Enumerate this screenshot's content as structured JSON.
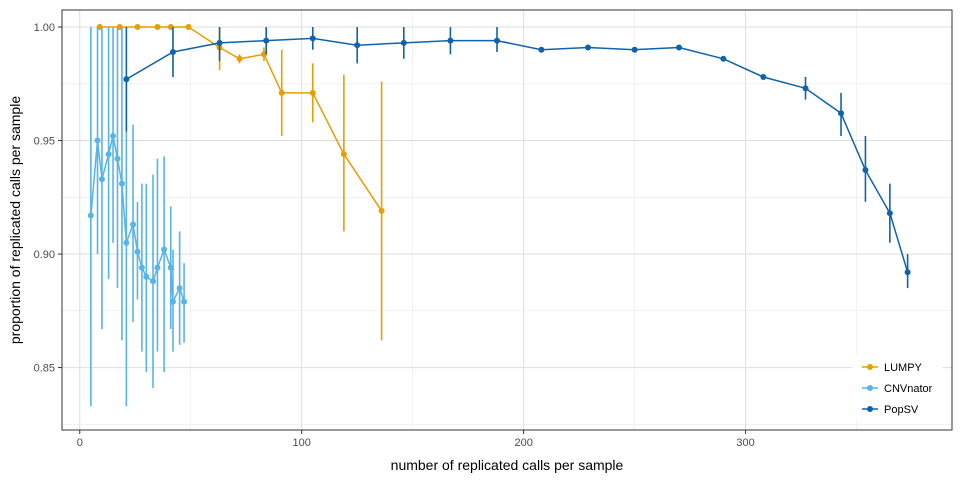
{
  "chart_data": {
    "type": "line",
    "xlabel": "number of replicated calls per sample",
    "ylabel": "proportion of replicated calls per sample",
    "xlim": [
      -8,
      393
    ],
    "ylim": [
      0.8225,
      1.0075
    ],
    "xticks": [
      0,
      100,
      200,
      300
    ],
    "yticks": [
      0.85,
      0.9,
      0.95,
      1.0
    ],
    "ytick_labels": [
      "0.85",
      "0.90",
      "0.95",
      "1.00"
    ],
    "grid": true,
    "legend_position": "bottom-right",
    "series": [
      {
        "name": "LUMPY",
        "color": "#E69F00",
        "points": [
          {
            "x": 9,
            "y": 1.0,
            "lo": 1.0,
            "hi": 1.0
          },
          {
            "x": 18,
            "y": 1.0,
            "lo": 1.0,
            "hi": 1.0
          },
          {
            "x": 26,
            "y": 1.0,
            "lo": 1.0,
            "hi": 1.0
          },
          {
            "x": 35,
            "y": 1.0,
            "lo": 1.0,
            "hi": 1.0
          },
          {
            "x": 41,
            "y": 1.0,
            "lo": 1.0,
            "hi": 1.0
          },
          {
            "x": 49,
            "y": 1.0,
            "lo": 1.0,
            "hi": 1.0
          },
          {
            "x": 63,
            "y": 0.991,
            "lo": 0.981,
            "hi": 1.0
          },
          {
            "x": 72,
            "y": 0.986,
            "lo": 0.984,
            "hi": 0.988
          },
          {
            "x": 83,
            "y": 0.988,
            "lo": 0.985,
            "hi": 0.991
          },
          {
            "x": 91,
            "y": 0.971,
            "lo": 0.952,
            "hi": 0.99
          },
          {
            "x": 105,
            "y": 0.971,
            "lo": 0.958,
            "hi": 0.984
          },
          {
            "x": 119,
            "y": 0.944,
            "lo": 0.91,
            "hi": 0.979
          },
          {
            "x": 136,
            "y": 0.919,
            "lo": 0.862,
            "hi": 0.976
          }
        ]
      },
      {
        "name": "CNVnator",
        "color": "#56B4E9",
        "points": [
          {
            "x": 5,
            "y": 0.917,
            "lo": 0.833,
            "hi": 1.0
          },
          {
            "x": 8,
            "y": 0.95,
            "lo": 0.9,
            "hi": 1.0
          },
          {
            "x": 10,
            "y": 0.933,
            "lo": 0.867,
            "hi": 1.0
          },
          {
            "x": 13,
            "y": 0.944,
            "lo": 0.889,
            "hi": 1.0
          },
          {
            "x": 15,
            "y": 0.952,
            "lo": 0.905,
            "hi": 1.0
          },
          {
            "x": 17,
            "y": 0.942,
            "lo": 0.885,
            "hi": 1.0
          },
          {
            "x": 19,
            "y": 0.931,
            "lo": 0.862,
            "hi": 1.0
          },
          {
            "x": 21,
            "y": 0.905,
            "lo": 0.833,
            "hi": 0.976
          },
          {
            "x": 24,
            "y": 0.913,
            "lo": 0.87,
            "hi": 0.957
          },
          {
            "x": 26,
            "y": 0.901,
            "lo": 0.88,
            "hi": 0.923
          },
          {
            "x": 28,
            "y": 0.894,
            "lo": 0.857,
            "hi": 0.931
          },
          {
            "x": 30,
            "y": 0.89,
            "lo": 0.848,
            "hi": 0.931
          },
          {
            "x": 33,
            "y": 0.888,
            "lo": 0.841,
            "hi": 0.935
          },
          {
            "x": 35,
            "y": 0.894,
            "lo": 0.857,
            "hi": 0.942
          },
          {
            "x": 38,
            "y": 0.902,
            "lo": 0.848,
            "hi": 0.943
          },
          {
            "x": 41,
            "y": 0.894,
            "lo": 0.867,
            "hi": 0.921
          },
          {
            "x": 42,
            "y": 0.879,
            "lo": 0.857,
            "hi": 0.902
          },
          {
            "x": 45,
            "y": 0.885,
            "lo": 0.86,
            "hi": 0.91
          },
          {
            "x": 47,
            "y": 0.879,
            "lo": 0.861,
            "hi": 0.896
          }
        ]
      },
      {
        "name": "PopSV",
        "color": "#0F63AD",
        "points": [
          {
            "x": 21,
            "y": 0.977,
            "lo": 0.954,
            "hi": 1.0
          },
          {
            "x": 42,
            "y": 0.989,
            "lo": 0.978,
            "hi": 1.0
          },
          {
            "x": 63,
            "y": 0.993,
            "lo": 0.985,
            "hi": 1.0
          },
          {
            "x": 84,
            "y": 0.994,
            "lo": 0.988,
            "hi": 1.0
          },
          {
            "x": 105,
            "y": 0.995,
            "lo": 0.99,
            "hi": 1.0
          },
          {
            "x": 125,
            "y": 0.992,
            "lo": 0.984,
            "hi": 1.0
          },
          {
            "x": 146,
            "y": 0.993,
            "lo": 0.986,
            "hi": 1.0
          },
          {
            "x": 167,
            "y": 0.994,
            "lo": 0.988,
            "hi": 1.0
          },
          {
            "x": 188,
            "y": 0.994,
            "lo": 0.989,
            "hi": 1.0
          },
          {
            "x": 208,
            "y": 0.99,
            "lo": 0.99,
            "hi": 0.99
          },
          {
            "x": 229,
            "y": 0.991,
            "lo": 0.991,
            "hi": 0.991
          },
          {
            "x": 250,
            "y": 0.99,
            "lo": 0.99,
            "hi": 0.99
          },
          {
            "x": 270,
            "y": 0.991,
            "lo": 0.991,
            "hi": 0.991
          },
          {
            "x": 290,
            "y": 0.986,
            "lo": 0.986,
            "hi": 0.986
          },
          {
            "x": 308,
            "y": 0.978,
            "lo": 0.978,
            "hi": 0.978
          },
          {
            "x": 327,
            "y": 0.973,
            "lo": 0.968,
            "hi": 0.978
          },
          {
            "x": 343,
            "y": 0.962,
            "lo": 0.952,
            "hi": 0.971
          },
          {
            "x": 354,
            "y": 0.937,
            "lo": 0.923,
            "hi": 0.952
          },
          {
            "x": 365,
            "y": 0.918,
            "lo": 0.905,
            "hi": 0.931
          },
          {
            "x": 373,
            "y": 0.892,
            "lo": 0.885,
            "hi": 0.9
          }
        ]
      }
    ]
  }
}
